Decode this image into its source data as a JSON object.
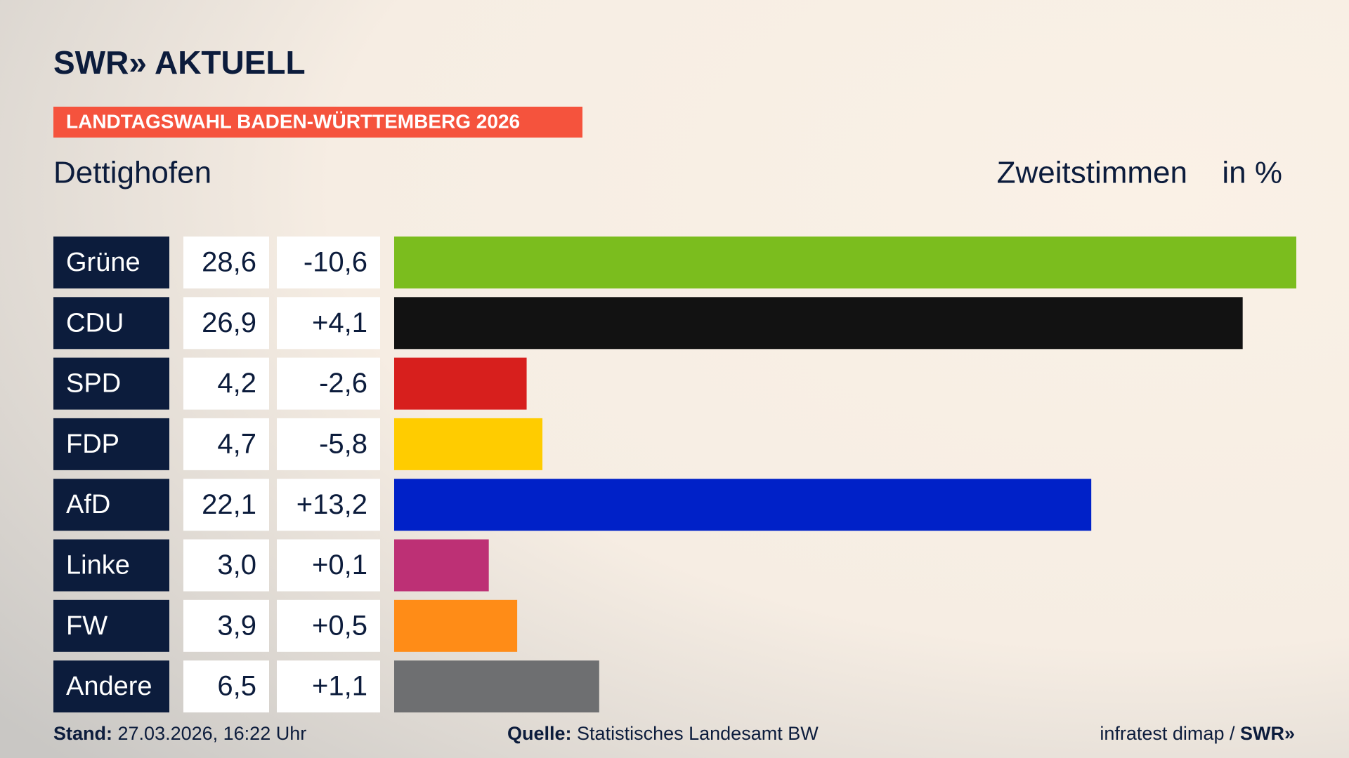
{
  "chart_data": {
    "type": "bar",
    "orientation": "horizontal",
    "brand": "SWR» AKTUELL",
    "title": "LANDTAGSWAHL BADEN-WÜRTTEMBERG 2026",
    "subtitle": "Dettighofen",
    "value_axis_label": "Zweitstimmen",
    "unit": "in %",
    "categories": [
      "Grüne",
      "CDU",
      "SPD",
      "FDP",
      "AfD",
      "Linke",
      "FW",
      "Andere"
    ],
    "values": [
      28.6,
      26.9,
      4.2,
      4.7,
      22.1,
      3.0,
      3.9,
      6.5
    ],
    "value_labels": [
      "28,6",
      "26,9",
      "4,2",
      "4,7",
      "22,1",
      "3,0",
      "3,9",
      "6,5"
    ],
    "changes": [
      -10.6,
      4.1,
      -2.6,
      -5.8,
      13.2,
      0.1,
      0.5,
      1.1
    ],
    "change_labels": [
      "-10,6",
      "+4,1",
      "-2,6",
      "-5,8",
      "+13,2",
      "+0,1",
      "+0,5",
      "+1,1"
    ],
    "colors": [
      "#7bbd1e",
      "#121212",
      "#d71f1d",
      "#ffcc00",
      "#0021c8",
      "#bd3075",
      "#ff8c17",
      "#6e6f71"
    ],
    "xlim": [
      0,
      28.6
    ],
    "footer": {
      "stand_label": "Stand:",
      "stand": "27.03.2026, 16:22 Uhr",
      "source_label": "Quelle:",
      "source": "Statistisches Landesamt BW",
      "credit": "infratest dimap /",
      "credit_brand": "SWR»"
    }
  }
}
